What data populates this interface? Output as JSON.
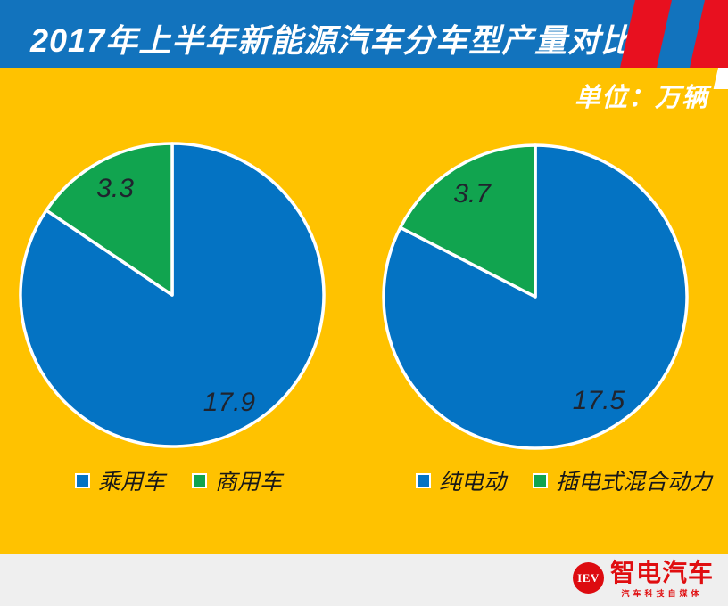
{
  "header": {
    "title": "2017年上半年新能源汽车分车型产量对比"
  },
  "unit_label": "单位：万辆",
  "chart_data": {
    "type": "pie",
    "title": "2017年上半年新能源汽车分车型产量对比",
    "unit": "万辆",
    "start_angle": "top",
    "direction": "clockwise",
    "legend_position": "bottom",
    "grid": false,
    "pies": [
      {
        "id": "left",
        "slices": [
          {
            "label": "乘用车",
            "value": 17.9,
            "color": "#0473C3"
          },
          {
            "label": "商用车",
            "value": 3.3,
            "color": "#11A44F"
          }
        ]
      },
      {
        "id": "right",
        "slices": [
          {
            "label": "纯电动",
            "value": 17.5,
            "color": "#0473C3"
          },
          {
            "label": "插电式混合动力",
            "value": 3.7,
            "color": "#11A44F"
          }
        ]
      }
    ]
  },
  "footer": {
    "logo_monogram": "IEV",
    "logo_name": "智电汽车",
    "logo_tagline": "汽车科技自媒体"
  },
  "colors": {
    "background": "#FFC200",
    "header_blue": "#1273BD",
    "stripe_red": "#E8101F",
    "pie_blue": "#0473C3",
    "pie_green": "#11A44F",
    "label_dark": "#20242E",
    "footer_strip": "#EFEFEF",
    "brand_red": "#DD0B10"
  }
}
